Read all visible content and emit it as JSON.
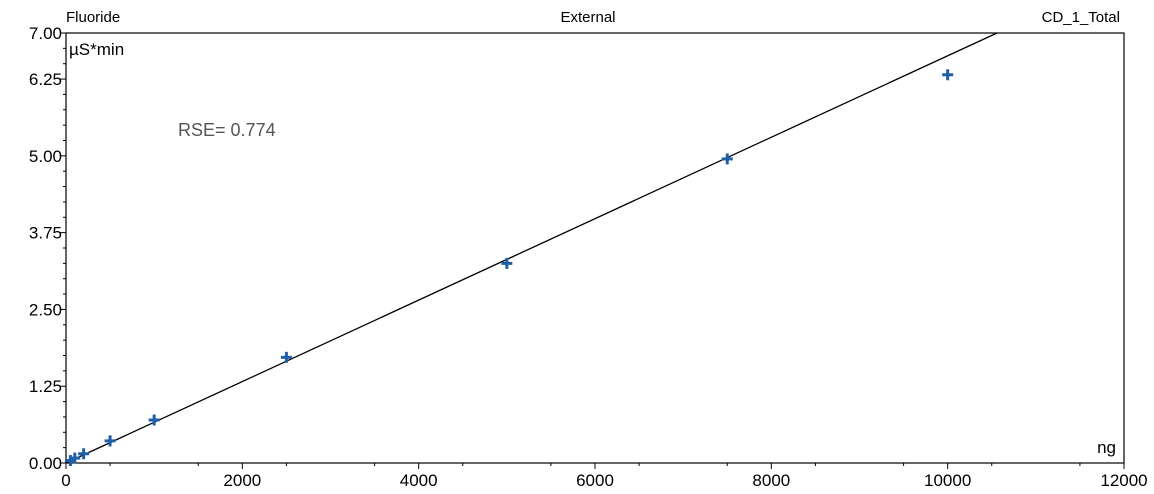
{
  "header": {
    "left": "Fluoride",
    "center": "External",
    "right": "CD_1_Total"
  },
  "annotation": {
    "rse_label": "RSE=",
    "rse_value": "0.774"
  },
  "chart_data": {
    "type": "scatter",
    "title": "External",
    "xlabel": "ng",
    "ylabel": "µS*min",
    "xlim": [
      0,
      12000
    ],
    "ylim": [
      0,
      7.0
    ],
    "x_ticks": [
      0,
      2000,
      4000,
      6000,
      8000,
      10000,
      12000
    ],
    "x_tick_labels": [
      "0",
      "2000",
      "4000",
      "6000",
      "8000",
      "10000",
      "12000"
    ],
    "y_ticks": [
      0,
      1.25,
      2.5,
      3.75,
      5.0,
      6.25,
      7.0
    ],
    "y_tick_labels": [
      "0.00",
      "1.25",
      "2.50",
      "3.75",
      "5.00",
      "6.25",
      "7.00"
    ],
    "grid": false,
    "series": [
      {
        "type": "scatter",
        "marker": "plus",
        "color": "#1f5fa8",
        "x": [
          50,
          100,
          200,
          500,
          1000,
          2500,
          5000,
          7500,
          10000
        ],
        "y": [
          0.04,
          0.08,
          0.15,
          0.36,
          0.7,
          1.72,
          3.25,
          4.95,
          6.32
        ]
      },
      {
        "type": "line",
        "color": "#000000",
        "x": [
          0,
          10560
        ],
        "y": [
          0,
          7.0
        ]
      }
    ]
  }
}
